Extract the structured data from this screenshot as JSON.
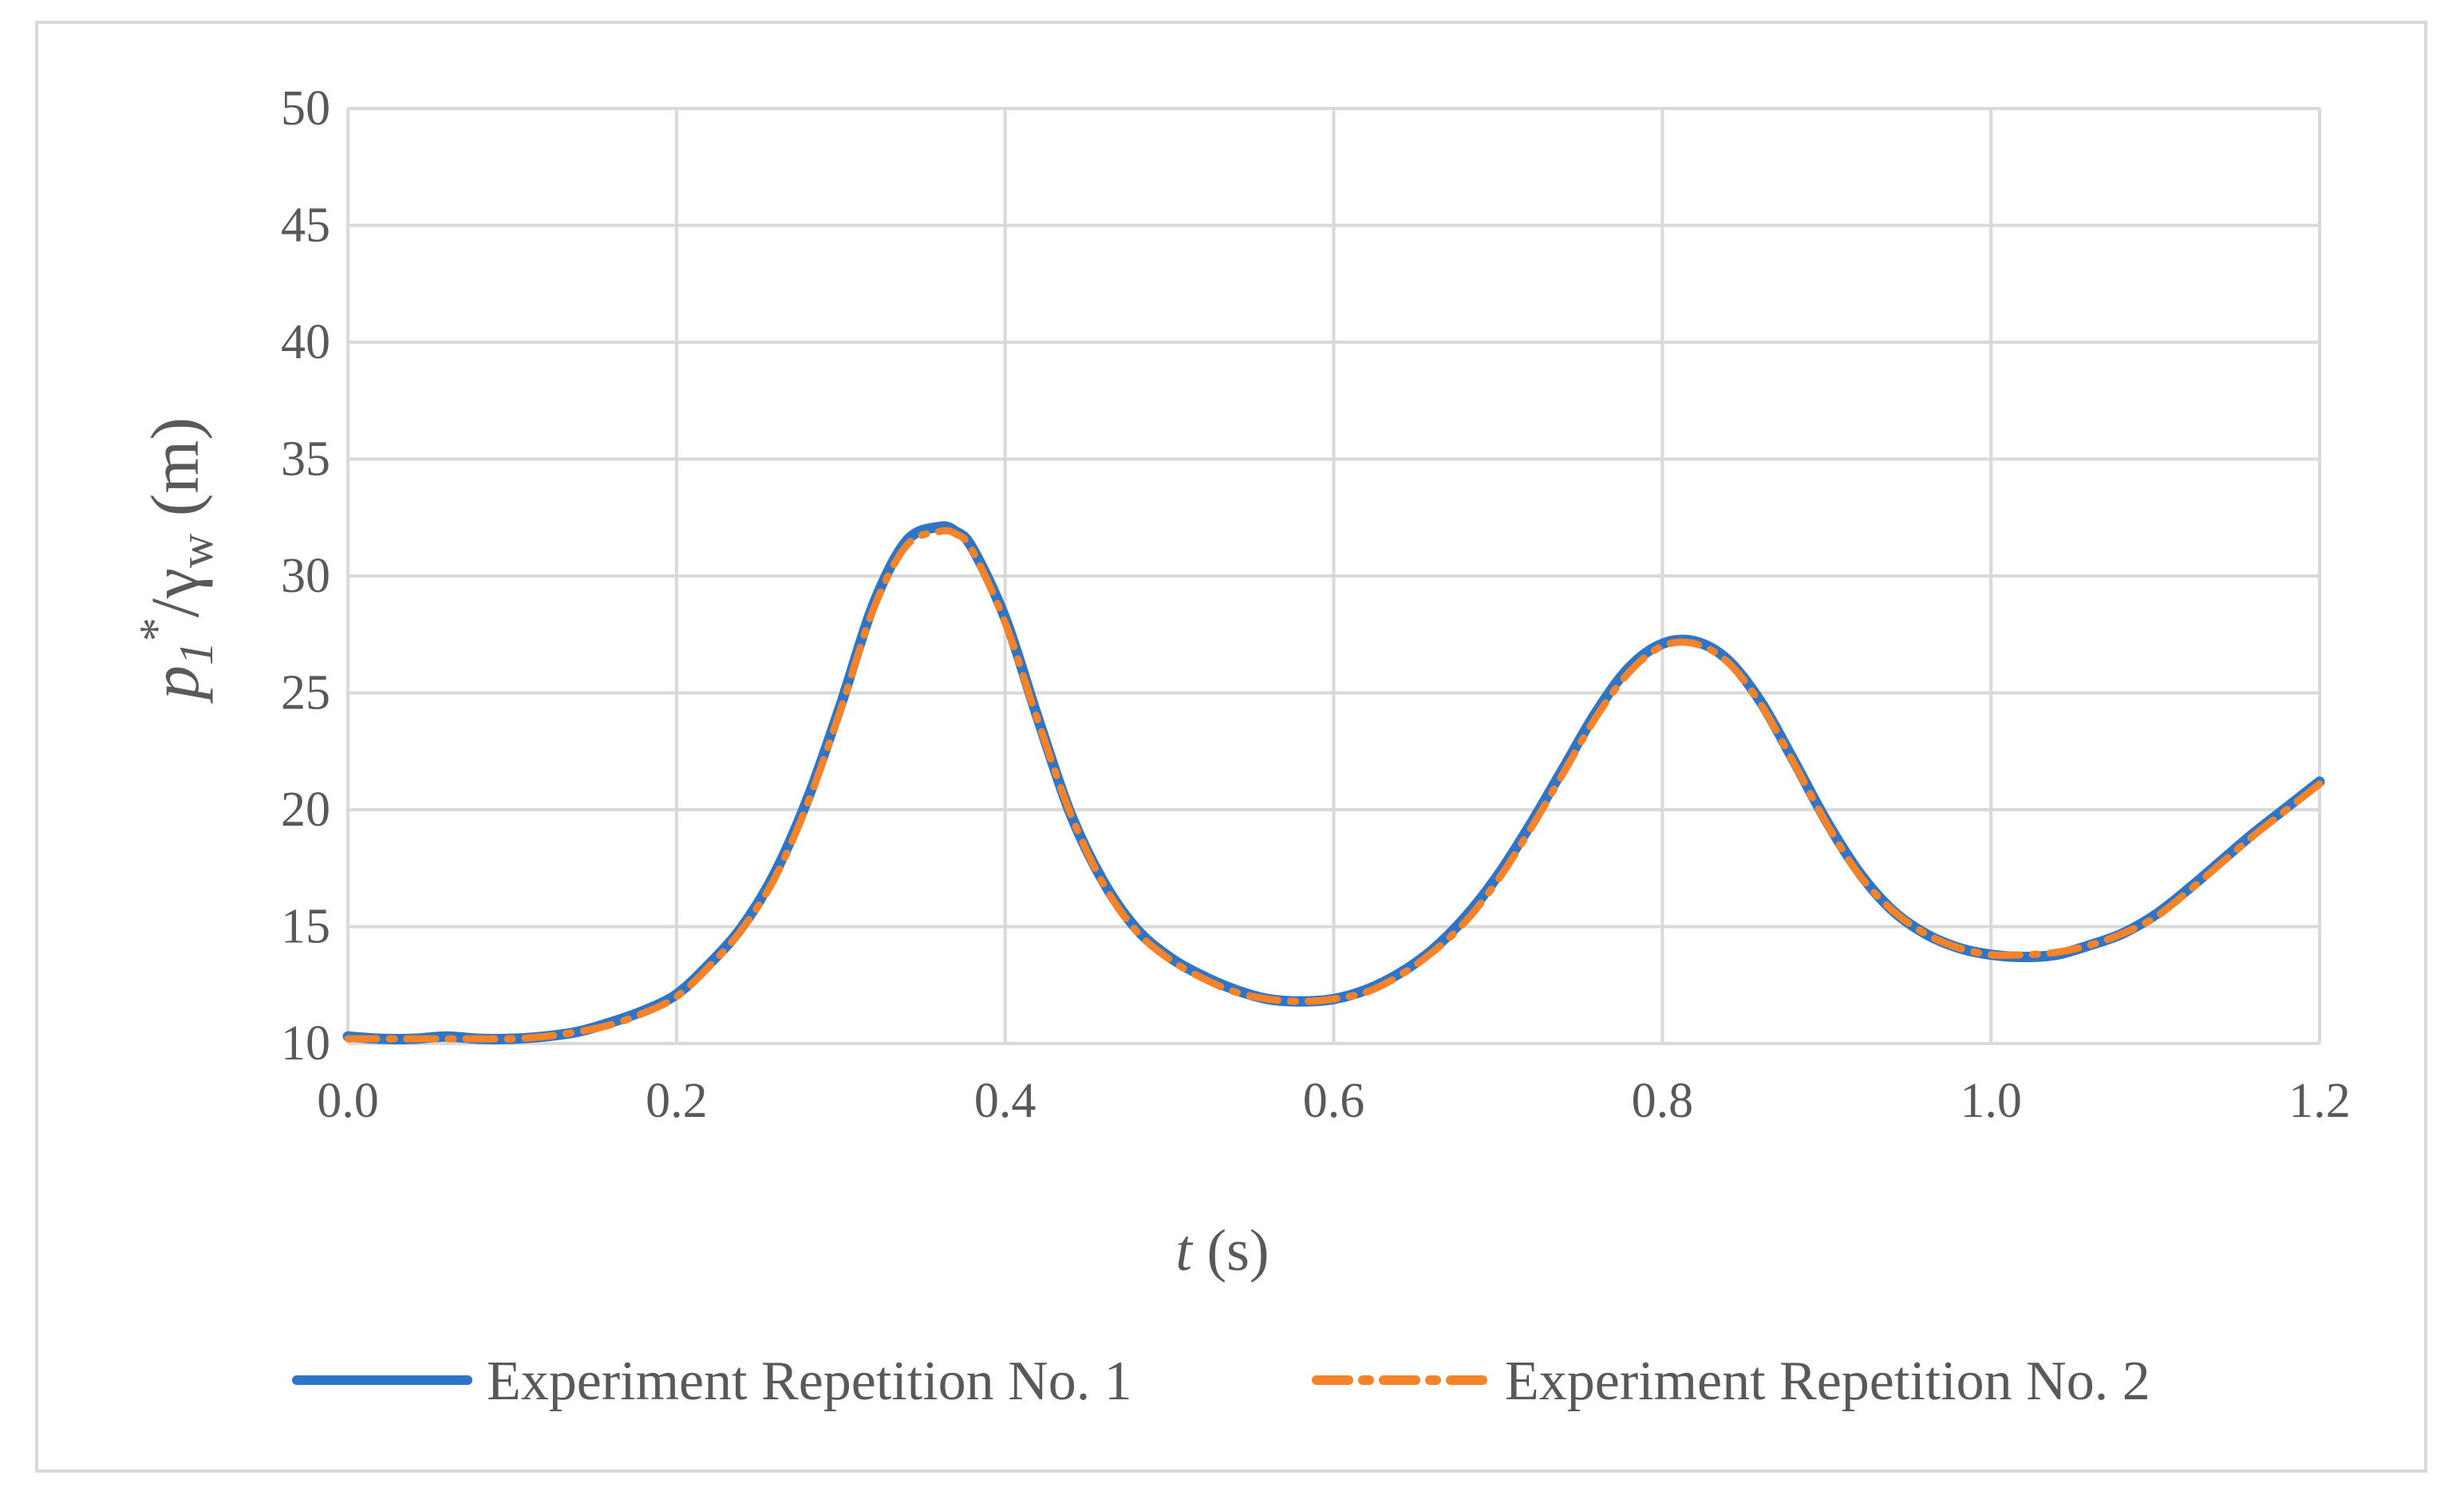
{
  "chart_data": {
    "type": "line",
    "title": "",
    "xlabel": {
      "italic": "t",
      "rest": " (s)"
    },
    "ylabel": {
      "p": "p",
      "sub1": "1",
      "sup": "*",
      "slash": "/γ",
      "subw": "w",
      "units": " (m)"
    },
    "xlim": [
      0.0,
      1.2
    ],
    "ylim": [
      10,
      50
    ],
    "xticks": [
      "0.0",
      "0.2",
      "0.4",
      "0.6",
      "0.8",
      "1.0",
      "1.2"
    ],
    "yticks": [
      "10",
      "15",
      "20",
      "25",
      "30",
      "35",
      "40",
      "45",
      "50"
    ],
    "grid": true,
    "legend_position": "bottom",
    "colors": {
      "series1": "#2E75C8",
      "series2": "#F5832A",
      "grid": "#d9d9d9",
      "text": "#595959"
    },
    "series": [
      {
        "name": "Experiment Repetition No. 1",
        "style": "solid",
        "x": [
          0.0,
          0.02,
          0.04,
          0.06,
          0.08,
          0.1,
          0.12,
          0.14,
          0.16,
          0.18,
          0.2,
          0.22,
          0.24,
          0.26,
          0.28,
          0.3,
          0.32,
          0.34,
          0.36,
          0.37,
          0.38,
          0.4,
          0.42,
          0.44,
          0.46,
          0.48,
          0.5,
          0.52,
          0.54,
          0.56,
          0.58,
          0.6,
          0.62,
          0.64,
          0.66,
          0.68,
          0.7,
          0.72,
          0.74,
          0.76,
          0.78,
          0.8,
          0.82,
          0.84,
          0.86,
          0.88,
          0.9,
          0.92,
          0.94,
          0.96,
          0.98,
          1.0,
          1.02,
          1.04,
          1.06,
          1.08,
          1.1,
          1.12,
          1.14,
          1.16,
          1.18,
          1.2
        ],
        "y": [
          10.3,
          10.2,
          10.2,
          10.3,
          10.2,
          10.2,
          10.3,
          10.5,
          10.9,
          11.4,
          12.1,
          13.4,
          15.0,
          17.3,
          20.5,
          24.5,
          28.8,
          31.5,
          32.1,
          31.9,
          31.2,
          28.2,
          23.9,
          19.8,
          16.9,
          14.9,
          13.7,
          12.9,
          12.3,
          11.9,
          11.8,
          11.9,
          12.3,
          13.0,
          14.0,
          15.4,
          17.2,
          19.4,
          21.8,
          24.2,
          26.1,
          27.1,
          27.2,
          26.4,
          24.6,
          22.1,
          19.5,
          17.3,
          15.7,
          14.7,
          14.1,
          13.8,
          13.7,
          13.8,
          14.2,
          14.7,
          15.5,
          16.6,
          17.8,
          19.0,
          20.1,
          21.2
        ]
      },
      {
        "name": "Experiment Repetition No. 2",
        "style": "dash-dot",
        "x": [
          0.0,
          0.02,
          0.04,
          0.06,
          0.08,
          0.1,
          0.12,
          0.14,
          0.16,
          0.18,
          0.2,
          0.22,
          0.24,
          0.26,
          0.28,
          0.3,
          0.32,
          0.34,
          0.36,
          0.37,
          0.38,
          0.4,
          0.42,
          0.44,
          0.46,
          0.48,
          0.5,
          0.52,
          0.54,
          0.56,
          0.58,
          0.6,
          0.62,
          0.64,
          0.66,
          0.68,
          0.7,
          0.72,
          0.74,
          0.76,
          0.78,
          0.8,
          0.82,
          0.84,
          0.86,
          0.88,
          0.9,
          0.92,
          0.94,
          0.96,
          0.98,
          1.0,
          1.02,
          1.04,
          1.06,
          1.08,
          1.1,
          1.12,
          1.14,
          1.16,
          1.18,
          1.2
        ],
        "y": [
          10.2,
          10.2,
          10.2,
          10.2,
          10.2,
          10.2,
          10.3,
          10.5,
          10.8,
          11.3,
          12.0,
          13.3,
          14.9,
          17.1,
          20.3,
          24.3,
          28.6,
          31.3,
          31.9,
          31.8,
          31.1,
          28.0,
          23.8,
          19.8,
          16.8,
          14.8,
          13.6,
          12.8,
          12.2,
          11.9,
          11.8,
          11.9,
          12.2,
          12.9,
          13.9,
          15.2,
          17.0,
          19.2,
          21.6,
          24.0,
          25.9,
          27.0,
          27.1,
          26.3,
          24.5,
          22.0,
          19.4,
          17.2,
          15.7,
          14.7,
          14.1,
          13.8,
          13.8,
          13.9,
          14.2,
          14.7,
          15.4,
          16.5,
          17.7,
          18.9,
          20.0,
          21.1
        ]
      }
    ]
  }
}
